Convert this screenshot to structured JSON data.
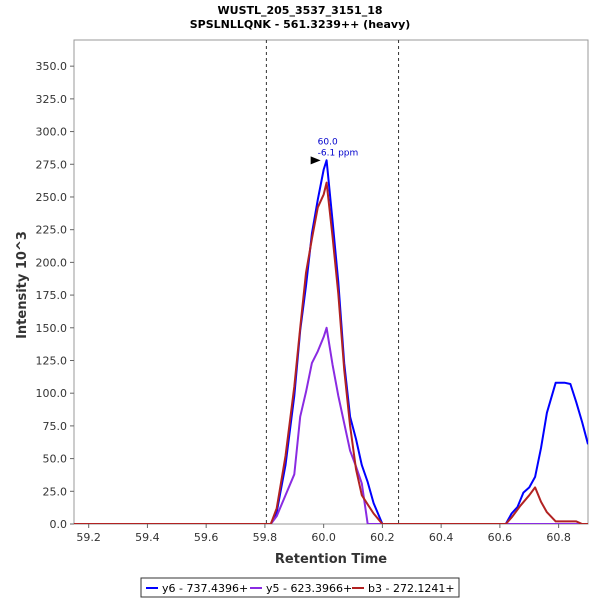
{
  "chart_data": {
    "type": "line",
    "title": "WUSTL_205_3537_3151_18",
    "subtitle": "SPSLNLLQNK - 561.3239++ (heavy)",
    "xlabel": "Retention Time",
    "ylabel": "Intensity 10^3",
    "xlim": [
      59.15,
      60.9
    ],
    "ylim": [
      0,
      370
    ],
    "x_ticks": [
      {
        "value": 59.2,
        "label": "59.2"
      },
      {
        "value": 59.4,
        "label": "59.4"
      },
      {
        "value": 59.6,
        "label": "59.6"
      },
      {
        "value": 59.8,
        "label": "59.8"
      },
      {
        "value": 60.0,
        "label": "60.0"
      },
      {
        "value": 60.2,
        "label": "60.2"
      },
      {
        "value": 60.4,
        "label": "60.4"
      },
      {
        "value": 60.6,
        "label": "60.6"
      },
      {
        "value": 60.8,
        "label": "60.8"
      }
    ],
    "y_ticks": [
      {
        "value": 0,
        "label": "0.0"
      },
      {
        "value": 25,
        "label": "25.0"
      },
      {
        "value": 50,
        "label": "50.0"
      },
      {
        "value": 75,
        "label": "75.0"
      },
      {
        "value": 100,
        "label": "100.0"
      },
      {
        "value": 125,
        "label": "125.0"
      },
      {
        "value": 150,
        "label": "150.0"
      },
      {
        "value": 175,
        "label": "175.0"
      },
      {
        "value": 200,
        "label": "200.0"
      },
      {
        "value": 225,
        "label": "225.0"
      },
      {
        "value": 250,
        "label": "250.0"
      },
      {
        "value": 275,
        "label": "275.0"
      },
      {
        "value": 300,
        "label": "300.0"
      },
      {
        "value": 325,
        "label": "325.0"
      },
      {
        "value": 350,
        "label": "350.0"
      }
    ],
    "grid": false,
    "legend_position": "bottom",
    "boundaries": [
      59.805,
      60.255
    ],
    "annotation": {
      "x": 60.0,
      "y": 278,
      "line1": "60.0",
      "line2": "-6.1 ppm"
    },
    "series": [
      {
        "name": "y6 - 737.4396+",
        "color": "#0000ff",
        "points": [
          [
            59.15,
            0
          ],
          [
            59.82,
            0
          ],
          [
            59.84,
            9
          ],
          [
            59.87,
            45
          ],
          [
            59.9,
            98
          ],
          [
            59.92,
            148
          ],
          [
            59.94,
            182
          ],
          [
            59.96,
            222
          ],
          [
            59.98,
            248
          ],
          [
            60.0,
            271
          ],
          [
            60.01,
            278
          ],
          [
            60.03,
            232
          ],
          [
            60.05,
            185
          ],
          [
            60.07,
            123
          ],
          [
            60.09,
            82
          ],
          [
            60.11,
            65
          ],
          [
            60.13,
            45
          ],
          [
            60.15,
            32
          ],
          [
            60.17,
            16
          ],
          [
            60.2,
            0
          ],
          [
            60.62,
            0
          ],
          [
            60.64,
            8
          ],
          [
            60.66,
            13
          ],
          [
            60.68,
            24
          ],
          [
            60.7,
            28
          ],
          [
            60.72,
            36
          ],
          [
            60.74,
            58
          ],
          [
            60.76,
            85
          ],
          [
            60.79,
            108
          ],
          [
            60.82,
            108
          ],
          [
            60.84,
            107
          ],
          [
            60.86,
            93
          ],
          [
            60.88,
            78
          ],
          [
            60.9,
            61
          ]
        ]
      },
      {
        "name": "y5 - 623.3966+",
        "color": "#8a2be2",
        "points": [
          [
            59.15,
            0
          ],
          [
            59.82,
            0
          ],
          [
            59.84,
            6
          ],
          [
            59.87,
            22
          ],
          [
            59.9,
            38
          ],
          [
            59.92,
            82
          ],
          [
            59.94,
            101
          ],
          [
            59.96,
            123
          ],
          [
            59.98,
            132
          ],
          [
            60.0,
            143
          ],
          [
            60.01,
            150
          ],
          [
            60.03,
            122
          ],
          [
            60.05,
            98
          ],
          [
            60.07,
            77
          ],
          [
            60.09,
            56
          ],
          [
            60.11,
            44
          ],
          [
            60.13,
            31
          ],
          [
            60.15,
            0
          ],
          [
            60.9,
            0
          ]
        ]
      },
      {
        "name": "b3 - 272.1241+",
        "color": "#b22222",
        "points": [
          [
            59.15,
            0
          ],
          [
            59.82,
            0
          ],
          [
            59.84,
            12
          ],
          [
            59.87,
            52
          ],
          [
            59.9,
            105
          ],
          [
            59.92,
            150
          ],
          [
            59.94,
            192
          ],
          [
            59.96,
            218
          ],
          [
            59.98,
            242
          ],
          [
            60.0,
            252
          ],
          [
            60.01,
            261
          ],
          [
            60.03,
            220
          ],
          [
            60.05,
            176
          ],
          [
            60.07,
            118
          ],
          [
            60.09,
            75
          ],
          [
            60.11,
            42
          ],
          [
            60.13,
            22
          ],
          [
            60.15,
            15
          ],
          [
            60.17,
            8
          ],
          [
            60.2,
            0
          ],
          [
            60.62,
            0
          ],
          [
            60.64,
            5
          ],
          [
            60.67,
            14
          ],
          [
            60.7,
            22
          ],
          [
            60.72,
            28
          ],
          [
            60.74,
            17
          ],
          [
            60.76,
            9
          ],
          [
            60.79,
            2
          ],
          [
            60.82,
            2
          ],
          [
            60.84,
            2
          ],
          [
            60.86,
            2
          ],
          [
            60.88,
            0
          ],
          [
            60.9,
            0
          ]
        ]
      }
    ]
  }
}
